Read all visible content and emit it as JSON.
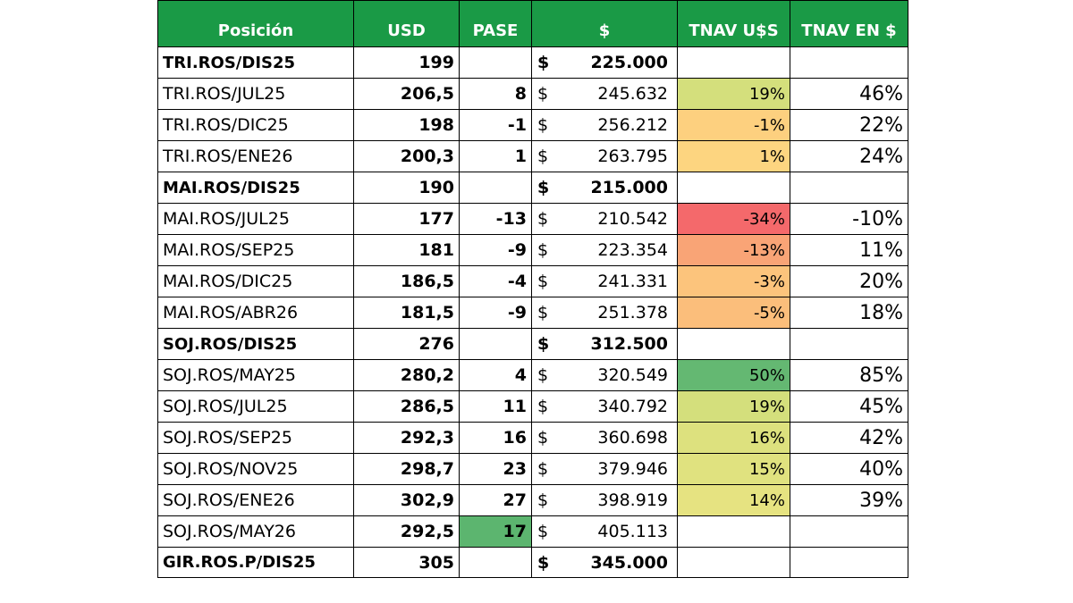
{
  "headers": {
    "posicion": "Posición",
    "usd": "USD",
    "pase": "PASE",
    "ars": "$",
    "tnav_usd": "TNAV U$S",
    "tnav_ars": "TNAV EN $"
  },
  "rows": [
    {
      "pos": "TRI.ROS/DIS25",
      "usd": "199",
      "pase": "",
      "cur": "$",
      "ars": "225.000",
      "tnu": "",
      "tna": "",
      "tnu_color": "#ffffff",
      "head": true
    },
    {
      "pos": "TRI.ROS/JUL25",
      "usd": "206,5",
      "pase": "8",
      "cur": "$",
      "ars": "245.632",
      "tnu": "19%",
      "tna": "46%",
      "tnu_color": "#d4df7c"
    },
    {
      "pos": "TRI.ROS/DIC25",
      "usd": "198",
      "pase": "-1",
      "cur": "$",
      "ars": "256.212",
      "tnu": "-1%",
      "tna": "22%",
      "tnu_color": "#fdd07f"
    },
    {
      "pos": "TRI.ROS/ENE26",
      "usd": "200,3",
      "pase": "1",
      "cur": "$",
      "ars": "263.795",
      "tnu": "1%",
      "tna": "24%",
      "tnu_color": "#fdd580"
    },
    {
      "pos": "MAI.ROS/DIS25",
      "usd": "190",
      "pase": "",
      "cur": "$",
      "ars": "215.000",
      "tnu": "",
      "tna": "",
      "tnu_color": "#ffffff",
      "head": true
    },
    {
      "pos": "MAI.ROS/JUL25",
      "usd": "177",
      "pase": "-13",
      "cur": "$",
      "ars": "210.542",
      "tnu": "-34%",
      "tna": "-10%",
      "tnu_color": "#f4696b"
    },
    {
      "pos": "MAI.ROS/SEP25",
      "usd": "181",
      "pase": "-9",
      "cur": "$",
      "ars": "223.354",
      "tnu": "-13%",
      "tna": "11%",
      "tnu_color": "#f9a476"
    },
    {
      "pos": "MAI.ROS/DIC25",
      "usd": "186,5",
      "pase": "-4",
      "cur": "$",
      "ars": "241.331",
      "tnu": "-3%",
      "tna": "20%",
      "tnu_color": "#fcc47c"
    },
    {
      "pos": "MAI.ROS/ABR26",
      "usd": "181,5",
      "pase": "-9",
      "cur": "$",
      "ars": "251.378",
      "tnu": "-5%",
      "tna": "18%",
      "tnu_color": "#fbbe7b"
    },
    {
      "pos": "SOJ.ROS/DIS25",
      "usd": "276",
      "pase": "",
      "cur": "$",
      "ars": "312.500",
      "tnu": "",
      "tna": "",
      "tnu_color": "#ffffff",
      "head": true
    },
    {
      "pos": "SOJ.ROS/MAY25",
      "usd": "280,2",
      "pase": "4",
      "cur": "$",
      "ars": "320.549",
      "tnu": "50%",
      "tna": "85%",
      "tnu_color": "#64b872"
    },
    {
      "pos": "SOJ.ROS/JUL25",
      "usd": "286,5",
      "pase": "11",
      "cur": "$",
      "ars": "340.792",
      "tnu": "19%",
      "tna": "45%",
      "tnu_color": "#d4df7c"
    },
    {
      "pos": "SOJ.ROS/SEP25",
      "usd": "292,3",
      "pase": "16",
      "cur": "$",
      "ars": "360.698",
      "tnu": "16%",
      "tna": "42%",
      "tnu_color": "#dde17e"
    },
    {
      "pos": "SOJ.ROS/NOV25",
      "usd": "298,7",
      "pase": "23",
      "cur": "$",
      "ars": "379.946",
      "tnu": "15%",
      "tna": "40%",
      "tnu_color": "#e0e27f"
    },
    {
      "pos": "SOJ.ROS/ENE26",
      "usd": "302,9",
      "pase": "27",
      "cur": "$",
      "ars": "398.919",
      "tnu": "14%",
      "tna": "39%",
      "tnu_color": "#e6e381"
    },
    {
      "pos": "SOJ.ROS/MAY26",
      "usd": "292,5",
      "pase": "17",
      "cur": "$",
      "ars": "405.113",
      "tnu": "",
      "tna": "",
      "tnu_color": "#ffffff",
      "pase_green": true
    },
    {
      "pos": "GIR.ROS.P/DIS25",
      "usd": "305",
      "pase": "",
      "cur": "$",
      "ars": "345.000",
      "tnu": "",
      "tna": "",
      "tnu_color": "#ffffff",
      "head": true
    }
  ]
}
